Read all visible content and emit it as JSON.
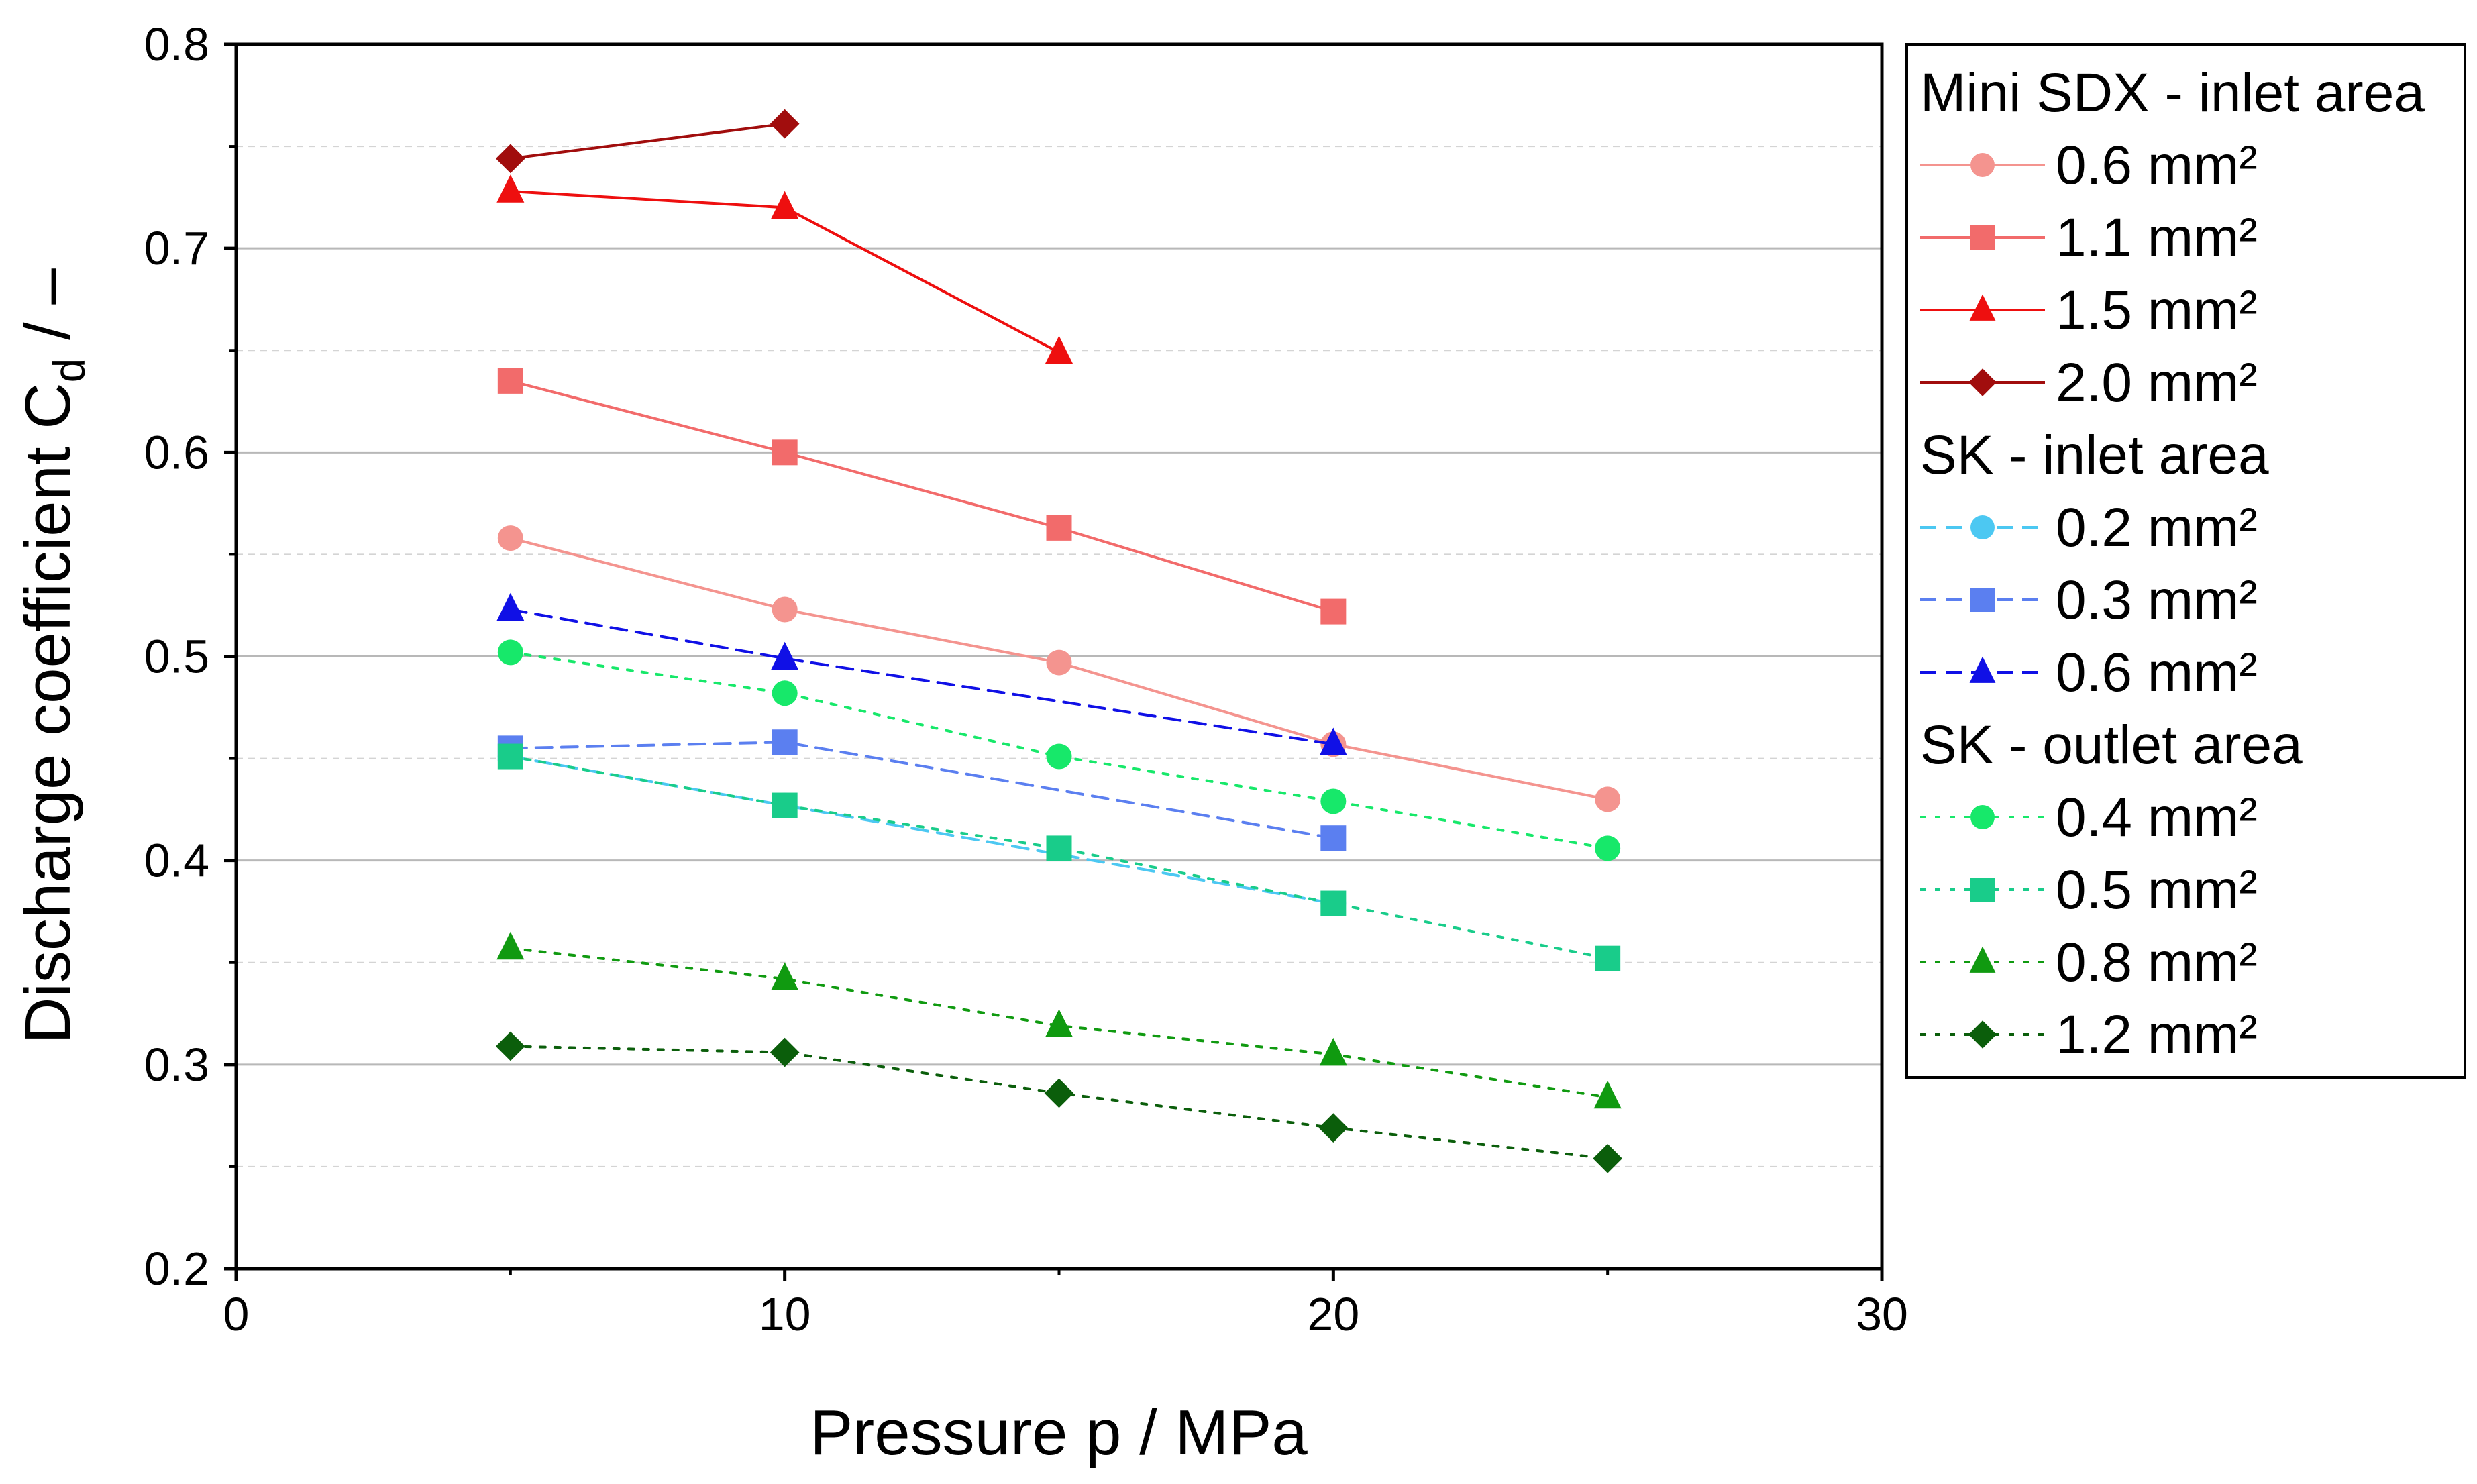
{
  "chart_data": {
    "type": "line",
    "xlabel": "Pressure p / MPa",
    "ylabel_main": "Discharge coefficient C",
    "ylabel_sub": "d",
    "ylabel_unit": " / –",
    "xlim": [
      0,
      30
    ],
    "ylim": [
      0.2,
      0.8
    ],
    "x_ticks": [
      0,
      10,
      20,
      30
    ],
    "x_tick_labels": [
      "0",
      "10",
      "20",
      "30"
    ],
    "y_ticks": [
      0.2,
      0.3,
      0.4,
      0.5,
      0.6,
      0.7,
      0.8
    ],
    "y_tick_labels": [
      "0.2",
      "0.3",
      "0.4",
      "0.5",
      "0.6",
      "0.7",
      "0.8"
    ],
    "grid": "horizontal major solid, minor dashed",
    "legend_position": "right, outside",
    "groups": [
      {
        "title": "Mini SDX - inlet area",
        "series": [
          {
            "name": "0.6 mm²",
            "color": "#f4948f",
            "marker": "circle",
            "line": "solid",
            "x": [
              5,
              10,
              15,
              20,
              25
            ],
            "y": [
              0.558,
              0.523,
              0.497,
              0.457,
              0.43
            ]
          },
          {
            "name": "1.1 mm²",
            "color": "#f26b6b",
            "marker": "square",
            "line": "solid",
            "x": [
              5,
              10,
              15,
              20
            ],
            "y": [
              0.635,
              0.6,
              0.563,
              0.522
            ]
          },
          {
            "name": "1.5 mm²",
            "color": "#ee0f0f",
            "marker": "triangle",
            "line": "solid",
            "x": [
              5,
              10,
              15
            ],
            "y": [
              0.728,
              0.72,
              0.649
            ]
          },
          {
            "name": "2.0 mm²",
            "color": "#a10d0d",
            "marker": "diamond",
            "line": "solid",
            "x": [
              5,
              10
            ],
            "y": [
              0.744,
              0.761
            ]
          }
        ]
      },
      {
        "title": "SK - inlet area",
        "series": [
          {
            "name": "0.2 mm²",
            "color": "#4cc8f2",
            "marker": "circle",
            "line": "dashed",
            "x": [
              5,
              10,
              20
            ],
            "y": [
              0.451,
              0.427,
              0.379
            ]
          },
          {
            "name": "0.3 mm²",
            "color": "#5b7ff0",
            "marker": "square",
            "line": "dashed",
            "x": [
              5,
              10,
              20
            ],
            "y": [
              0.455,
              0.458,
              0.411
            ]
          },
          {
            "name": "0.6 mm²",
            "color": "#1010e6",
            "marker": "triangle",
            "line": "dashed",
            "x": [
              5,
              10,
              20
            ],
            "y": [
              0.523,
              0.499,
              0.457
            ]
          }
        ]
      },
      {
        "title": "SK - outlet area",
        "series": [
          {
            "name": "0.4 mm²",
            "color": "#17e86a",
            "marker": "circle",
            "line": "dotted",
            "x": [
              5,
              10,
              15,
              20,
              25
            ],
            "y": [
              0.502,
              0.482,
              0.451,
              0.429,
              0.406
            ]
          },
          {
            "name": "0.5 mm²",
            "color": "#19cc8a",
            "marker": "square",
            "line": "dotted",
            "x": [
              5,
              10,
              15,
              20,
              25
            ],
            "y": [
              0.451,
              0.427,
              0.406,
              0.379,
              0.352
            ]
          },
          {
            "name": "0.8 mm²",
            "color": "#109a10",
            "marker": "triangle",
            "line": "dotted",
            "x": [
              5,
              10,
              15,
              20,
              25
            ],
            "y": [
              0.357,
              0.342,
              0.319,
              0.305,
              0.284
            ]
          },
          {
            "name": "1.2 mm²",
            "color": "#0b5e0b",
            "marker": "diamond",
            "line": "dotted",
            "x": [
              5,
              10,
              15,
              20,
              25
            ],
            "y": [
              0.309,
              0.306,
              0.286,
              0.269,
              0.254
            ]
          }
        ]
      }
    ]
  }
}
